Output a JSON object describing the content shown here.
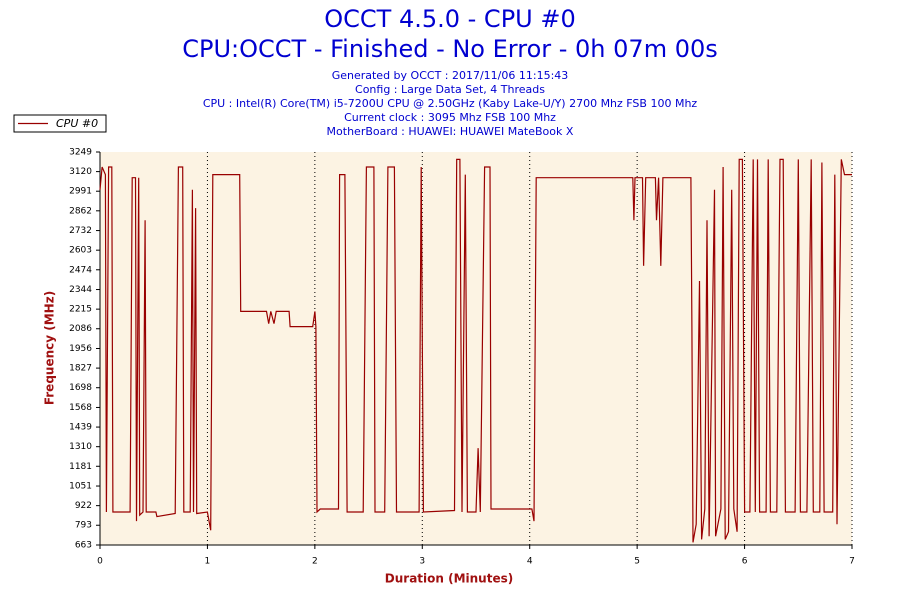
{
  "chart_data": {
    "type": "line",
    "title": "OCCT 4.5.0 - CPU #0",
    "subtitle": "CPU:OCCT - Finished - No Error - 0h 07m 00s",
    "info": [
      "Generated by OCCT : 2017/11/06 11:15:43",
      "Config : Large Data Set, 4 Threads",
      "CPU : Intel(R) Core(TM) i5-7200U CPU @ 2.50GHz (Kaby Lake-U/Y) 2700 Mhz FSB 100 Mhz",
      "Current clock : 3095 Mhz FSB 100 Mhz",
      "MotherBoard : HUAWEI: HUAWEI MateBook X"
    ],
    "x_label": "Duration (Minutes)",
    "y_label": "Frequency (MHz)",
    "xlim": [
      0,
      7
    ],
    "xticks": [
      0,
      1,
      2,
      3,
      4,
      5,
      6,
      7
    ],
    "ylim": [
      663,
      3249
    ],
    "yticks": [
      663,
      793,
      922,
      1051,
      1181,
      1310,
      1439,
      1568,
      1698,
      1827,
      1956,
      2086,
      2215,
      2344,
      2474,
      2603,
      2732,
      2862,
      2991,
      3120,
      3249
    ],
    "x_grid": true,
    "legend": "top-left",
    "x": [
      0.0,
      0.02,
      0.05,
      0.06,
      0.08,
      0.11,
      0.12,
      0.28,
      0.3,
      0.33,
      0.34,
      0.36,
      0.37,
      0.4,
      0.42,
      0.43,
      0.52,
      0.53,
      0.7,
      0.73,
      0.77,
      0.78,
      0.84,
      0.86,
      0.87,
      0.89,
      0.9,
      1.0,
      1.03,
      1.05,
      1.3,
      1.31,
      1.55,
      1.57,
      1.59,
      1.62,
      1.64,
      1.76,
      1.77,
      1.98,
      2.0,
      2.01,
      2.02,
      2.05,
      2.22,
      2.23,
      2.28,
      2.3,
      2.45,
      2.48,
      2.55,
      2.56,
      2.65,
      2.68,
      2.74,
      2.76,
      2.97,
      2.99,
      3.01,
      3.3,
      3.32,
      3.35,
      3.37,
      3.4,
      3.42,
      3.5,
      3.52,
      3.54,
      3.58,
      3.63,
      3.64,
      4.02,
      4.04,
      4.06,
      4.96,
      4.97,
      4.98,
      5.05,
      5.06,
      5.08,
      5.15,
      5.17,
      5.18,
      5.2,
      5.22,
      5.24,
      5.5,
      5.51,
      5.52,
      5.55,
      5.58,
      5.6,
      5.63,
      5.65,
      5.67,
      5.72,
      5.73,
      5.78,
      5.8,
      5.82,
      5.85,
      5.88,
      5.9,
      5.93,
      5.95,
      5.98,
      6.0,
      6.05,
      6.08,
      6.1,
      6.12,
      6.14,
      6.2,
      6.22,
      6.24,
      6.3,
      6.33,
      6.36,
      6.38,
      6.47,
      6.5,
      6.52,
      6.58,
      6.62,
      6.64,
      6.7,
      6.72,
      6.74,
      6.82,
      6.84,
      6.86,
      6.9,
      6.93,
      7.0
    ],
    "series": [
      {
        "name": "CPU #0",
        "color": "#990000",
        "values": [
          3000,
          3150,
          3100,
          880,
          3150,
          3150,
          880,
          880,
          3080,
          3080,
          820,
          3080,
          860,
          880,
          2800,
          880,
          880,
          850,
          870,
          3150,
          3150,
          880,
          880,
          3000,
          880,
          2880,
          870,
          880,
          760,
          3100,
          3100,
          2200,
          2200,
          2120,
          2200,
          2120,
          2200,
          2200,
          2100,
          2100,
          2200,
          2100,
          880,
          900,
          900,
          3100,
          3100,
          880,
          880,
          3150,
          3150,
          880,
          880,
          3150,
          3150,
          880,
          880,
          3150,
          880,
          890,
          3200,
          3200,
          880,
          3100,
          880,
          880,
          1300,
          880,
          3150,
          3150,
          900,
          900,
          820,
          3080,
          3080,
          2800,
          3080,
          3080,
          2500,
          3080,
          3080,
          3080,
          2800,
          3080,
          2500,
          3080,
          3080,
          2100,
          680,
          800,
          2400,
          700,
          900,
          2800,
          720,
          3000,
          720,
          900,
          3150,
          700,
          750,
          3000,
          900,
          750,
          3200,
          3200,
          880,
          880,
          3200,
          880,
          3200,
          880,
          880,
          3200,
          880,
          880,
          3200,
          3200,
          880,
          880,
          3200,
          880,
          880,
          3200,
          880,
          880,
          3180,
          880,
          880,
          3100,
          800,
          3200,
          3100,
          3100
        ]
      }
    ]
  }
}
